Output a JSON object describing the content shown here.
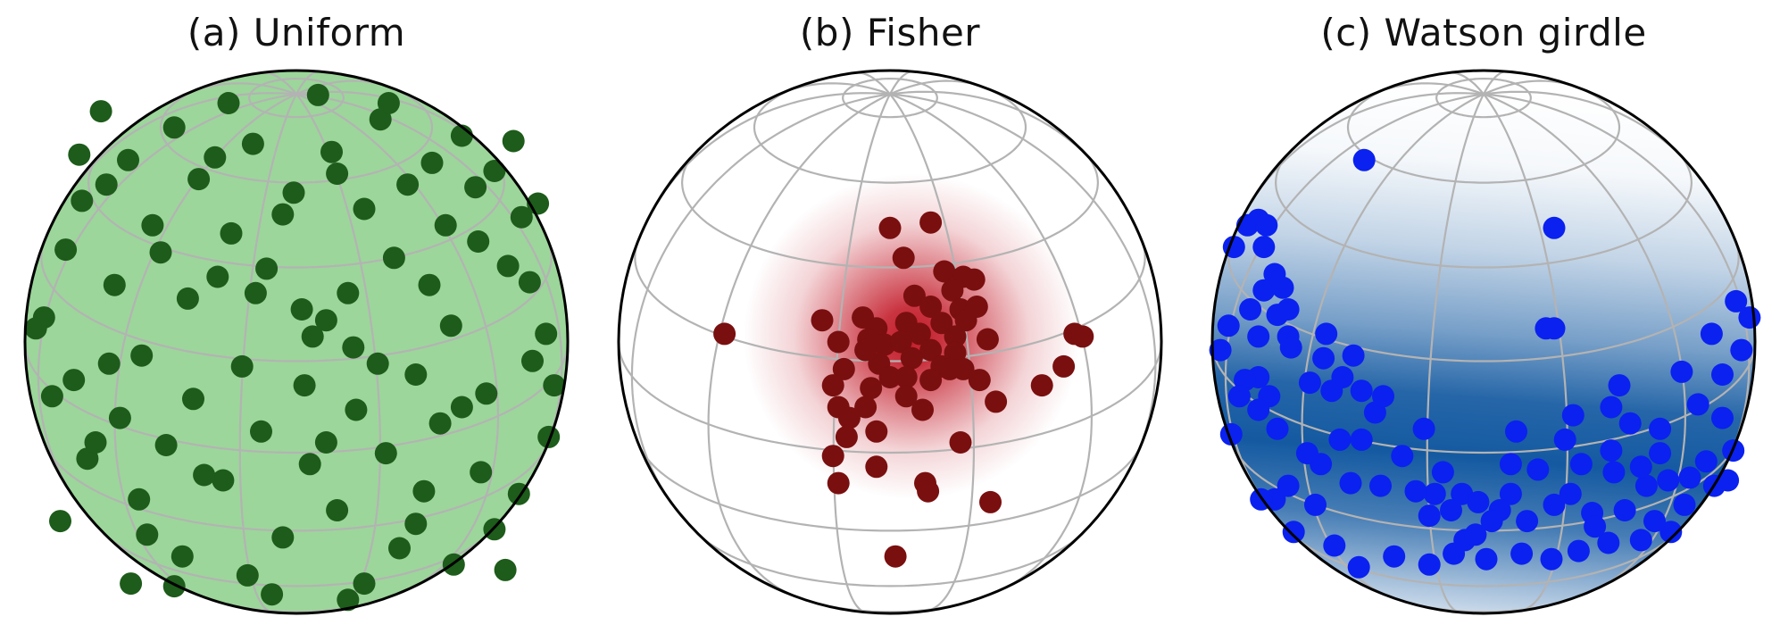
{
  "figure": {
    "colors": {
      "outline": "#000000",
      "gridline": "#b3b3b3"
    }
  },
  "chart_data": [
    {
      "type": "scatter",
      "projection": "orthographic sphere",
      "title": "(a) Uniform",
      "distribution": "uniform",
      "density_fill": "none",
      "sphere_fill": "#9cd69a",
      "point_color": "#1d5c1a",
      "point_count": 96,
      "points": [
        [
          0.06,
          0.02
        ],
        [
          0.57,
          0.06
        ],
        [
          0.11,
          0.08
        ],
        [
          -0.4,
          0.16
        ],
        [
          0.19,
          0.18
        ],
        [
          -0.67,
          0.21
        ],
        [
          0.49,
          0.21
        ],
        [
          -0.11,
          0.27
        ],
        [
          0.36,
          0.31
        ],
        [
          -0.85,
          0.34
        ],
        [
          0.67,
          0.37
        ],
        [
          -0.24,
          0.4
        ],
        [
          -0.53,
          0.43
        ],
        [
          0.83,
          0.46
        ],
        [
          0.25,
          0.49
        ],
        [
          -0.79,
          0.52
        ],
        [
          -0.01,
          0.55
        ],
        [
          0.41,
          0.58
        ],
        [
          -0.36,
          0.6
        ],
        [
          0.73,
          0.63
        ],
        [
          -0.62,
          0.67
        ],
        [
          0.13,
          0.7
        ],
        [
          -0.16,
          0.73
        ],
        [
          0.61,
          0.76
        ],
        [
          -0.45,
          0.79
        ],
        [
          0.31,
          0.82
        ],
        [
          -0.72,
          0.85
        ],
        [
          0.92,
          0.03
        ],
        [
          -0.93,
          0.09
        ],
        [
          0.02,
          0.12
        ],
        [
          -0.29,
          0.24
        ],
        [
          0.78,
          0.28
        ],
        [
          -0.5,
          0.33
        ],
        [
          0.55,
          0.43
        ],
        [
          -0.05,
          0.47
        ],
        [
          -0.7,
          0.58
        ],
        [
          0.89,
          0.51
        ],
        [
          0.15,
          0.62
        ],
        [
          -0.3,
          0.68
        ],
        [
          0.8,
          0.74
        ],
        [
          0.21,
          -0.02
        ],
        [
          -0.57,
          -0.05
        ],
        [
          0.87,
          -0.07
        ],
        [
          -0.2,
          -0.09
        ],
        [
          0.44,
          -0.12
        ],
        [
          -0.82,
          -0.14
        ],
        [
          0.03,
          -0.16
        ],
        [
          0.7,
          -0.19
        ],
        [
          -0.38,
          -0.21
        ],
        [
          0.22,
          -0.25
        ],
        [
          -0.65,
          -0.28
        ],
        [
          0.53,
          -0.3
        ],
        [
          -0.13,
          -0.33
        ],
        [
          0.93,
          -0.35
        ],
        [
          -0.48,
          -0.38
        ],
        [
          0.33,
          -0.41
        ],
        [
          -0.77,
          -0.43
        ],
        [
          0.05,
          -0.45
        ],
        [
          0.68,
          -0.48
        ],
        [
          -0.27,
          -0.51
        ],
        [
          0.47,
          -0.55
        ],
        [
          -0.58,
          -0.58
        ],
        [
          0.15,
          -0.62
        ],
        [
          -0.87,
          -0.66
        ],
        [
          0.73,
          -0.69
        ],
        [
          -0.05,
          -0.72
        ],
        [
          0.38,
          -0.76
        ],
        [
          -0.42,
          -0.79
        ],
        [
          0.58,
          -0.82
        ],
        [
          -0.18,
          -0.86
        ],
        [
          0.25,
          -0.89
        ],
        [
          -0.69,
          -0.08
        ],
        [
          0.61,
          -0.24
        ],
        [
          -0.34,
          -0.49
        ],
        [
          0.82,
          -0.56
        ],
        [
          -0.9,
          -0.2
        ],
        [
          0.11,
          -0.37
        ],
        [
          -0.55,
          -0.71
        ],
        [
          0.44,
          -0.67
        ],
        [
          -0.09,
          -0.93
        ],
        [
          0.3,
          -0.08
        ],
        [
          -0.74,
          -0.37
        ],
        [
          0.95,
          -0.16
        ],
        [
          -0.45,
          -0.9
        ],
        [
          0.08,
          0.91
        ],
        [
          0.34,
          0.88
        ],
        [
          -0.25,
          0.88
        ],
        [
          0.66,
          0.57
        ],
        [
          -0.96,
          0.05
        ],
        [
          0.5,
          0.66
        ],
        [
          0.86,
          0.22
        ],
        [
          -0.15,
          0.18
        ],
        [
          -0.61,
          -0.89
        ],
        [
          0.19,
          -0.95
        ],
        [
          0.77,
          -0.84
        ],
        [
          -0.8,
          0.69
        ]
      ]
    },
    {
      "type": "scatter",
      "projection": "orthographic sphere",
      "title": "(b) Fisher",
      "distribution": "Fisher",
      "density_fill": "concentrated",
      "sphere_fill": "#ffffff",
      "density_color": "#c0101f",
      "point_color": "#7a0f0f",
      "point_count": 60,
      "mean_direction": [
        0.08,
        0.02
      ],
      "points": [
        [
          0.0,
          0.42
        ],
        [
          0.15,
          0.44
        ],
        [
          0.05,
          0.31
        ],
        [
          0.2,
          0.26
        ],
        [
          0.27,
          0.24
        ],
        [
          0.31,
          0.23
        ],
        [
          0.23,
          0.19
        ],
        [
          0.09,
          0.17
        ],
        [
          0.15,
          0.13
        ],
        [
          0.26,
          0.12
        ],
        [
          0.32,
          0.13
        ],
        [
          0.06,
          0.07
        ],
        [
          0.19,
          0.07
        ],
        [
          0.28,
          0.08
        ],
        [
          -0.25,
          0.08
        ],
        [
          -0.1,
          0.09
        ],
        [
          -0.05,
          0.05
        ],
        [
          0.11,
          0.03
        ],
        [
          0.24,
          0.02
        ],
        [
          0.36,
          0.01
        ],
        [
          -0.19,
          0.0
        ],
        [
          -0.08,
          0.01
        ],
        [
          -0.02,
          -0.01
        ],
        [
          0.04,
          0.0
        ],
        [
          -0.09,
          -0.03
        ],
        [
          0.15,
          -0.03
        ],
        [
          0.08,
          -0.06
        ],
        [
          0.24,
          -0.04
        ],
        [
          -0.04,
          -0.08
        ],
        [
          -0.17,
          -0.1
        ],
        [
          0.19,
          -0.09
        ],
        [
          0.27,
          -0.1
        ],
        [
          -0.21,
          -0.16
        ],
        [
          0.0,
          -0.13
        ],
        [
          0.06,
          -0.13
        ],
        [
          0.15,
          -0.14
        ],
        [
          -0.07,
          -0.17
        ],
        [
          0.22,
          -0.1
        ],
        [
          0.33,
          -0.14
        ],
        [
          0.06,
          -0.2
        ],
        [
          -0.19,
          -0.24
        ],
        [
          -0.09,
          -0.24
        ],
        [
          0.12,
          -0.25
        ],
        [
          -0.15,
          -0.28
        ],
        [
          0.39,
          -0.22
        ],
        [
          -0.05,
          -0.33
        ],
        [
          0.26,
          -0.37
        ],
        [
          -0.21,
          -0.42
        ],
        [
          0.56,
          -0.16
        ],
        [
          -0.05,
          -0.46
        ],
        [
          -0.19,
          -0.52
        ],
        [
          0.13,
          -0.52
        ],
        [
          0.37,
          -0.59
        ],
        [
          0.02,
          -0.79
        ],
        [
          0.14,
          -0.55
        ],
        [
          -0.61,
          0.03
        ],
        [
          0.68,
          0.03
        ],
        [
          0.64,
          -0.09
        ],
        [
          0.71,
          0.02
        ],
        [
          -0.16,
          -0.35
        ]
      ]
    },
    {
      "type": "scatter",
      "projection": "orthographic sphere",
      "title": "(c) Watson girdle",
      "distribution": "Watson girdle",
      "density_fill": "band",
      "sphere_fill": "#ffffff",
      "density_color": "#08519c",
      "point_color": "#0a21f0",
      "point_count": 110,
      "points": [
        [
          -0.44,
          0.67
        ],
        [
          0.26,
          0.42
        ],
        [
          0.23,
          0.05
        ],
        [
          0.26,
          0.05
        ],
        [
          0.84,
          0.03
        ],
        [
          -0.87,
          0.43
        ],
        [
          -0.83,
          0.45
        ],
        [
          -0.8,
          0.43
        ],
        [
          -0.81,
          0.35
        ],
        [
          -0.77,
          0.25
        ],
        [
          -0.81,
          0.19
        ],
        [
          -0.74,
          0.2
        ],
        [
          -0.86,
          0.12
        ],
        [
          -0.76,
          0.1
        ],
        [
          -0.72,
          0.12
        ],
        [
          -0.83,
          0.02
        ],
        [
          -0.72,
          0.02
        ],
        [
          -0.71,
          -0.02
        ],
        [
          -0.59,
          -0.06
        ],
        [
          -0.83,
          -0.13
        ],
        [
          -0.64,
          -0.15
        ],
        [
          -0.88,
          -0.14
        ],
        [
          -0.79,
          -0.2
        ],
        [
          -0.52,
          -0.13
        ],
        [
          -0.56,
          -0.18
        ],
        [
          -0.83,
          -0.25
        ],
        [
          -0.4,
          -0.26
        ],
        [
          -0.53,
          -0.36
        ],
        [
          -0.45,
          -0.36
        ],
        [
          -0.22,
          -0.32
        ],
        [
          -0.6,
          -0.45
        ],
        [
          -0.49,
          -0.52
        ],
        [
          -0.18,
          -0.56
        ],
        [
          -0.08,
          -0.56
        ],
        [
          -0.02,
          -0.59
        ],
        [
          0.1,
          -0.56
        ],
        [
          -0.12,
          -0.62
        ],
        [
          0.06,
          -0.62
        ],
        [
          0.26,
          -0.6
        ],
        [
          0.32,
          -0.56
        ],
        [
          0.48,
          -0.48
        ],
        [
          0.6,
          -0.53
        ],
        [
          0.68,
          -0.51
        ],
        [
          0.65,
          -0.32
        ],
        [
          0.65,
          -0.41
        ],
        [
          0.54,
          -0.3
        ],
        [
          0.47,
          -0.4
        ],
        [
          0.33,
          -0.27
        ],
        [
          0.12,
          -0.33
        ],
        [
          0.76,
          -0.5
        ],
        [
          0.88,
          -0.28
        ],
        [
          0.92,
          -0.4
        ],
        [
          0.85,
          -0.53
        ],
        [
          0.74,
          -0.6
        ],
        [
          0.69,
          -0.7
        ],
        [
          0.58,
          -0.73
        ],
        [
          0.46,
          -0.74
        ],
        [
          0.35,
          -0.77
        ],
        [
          0.25,
          -0.8
        ],
        [
          0.14,
          -0.78
        ],
        [
          -0.07,
          -0.73
        ],
        [
          -0.11,
          -0.78
        ],
        [
          -0.2,
          -0.82
        ],
        [
          -0.33,
          -0.79
        ],
        [
          -0.46,
          -0.83
        ],
        [
          -0.62,
          -0.6
        ],
        [
          -0.77,
          -0.58
        ],
        [
          -0.82,
          -0.58
        ],
        [
          -0.92,
          0.35
        ],
        [
          -0.94,
          0.06
        ],
        [
          -0.97,
          -0.03
        ],
        [
          -0.9,
          -0.2
        ],
        [
          0.95,
          -0.03
        ],
        [
          0.93,
          0.15
        ],
        [
          0.73,
          -0.11
        ],
        [
          0.5,
          -0.16
        ],
        [
          0.58,
          -0.46
        ],
        [
          0.52,
          -0.62
        ],
        [
          0.4,
          -0.63
        ],
        [
          0.16,
          -0.66
        ],
        [
          0.03,
          -0.66
        ],
        [
          -0.03,
          -0.71
        ],
        [
          -0.2,
          -0.64
        ],
        [
          -0.25,
          -0.55
        ],
        [
          -0.38,
          -0.53
        ],
        [
          -0.65,
          -0.41
        ],
        [
          -0.72,
          -0.53
        ],
        [
          -0.93,
          -0.34
        ],
        [
          -0.58,
          0.03
        ],
        [
          -0.48,
          -0.05
        ],
        [
          -0.45,
          -0.18
        ],
        [
          -0.76,
          -0.32
        ],
        [
          0.1,
          -0.45
        ],
        [
          0.36,
          -0.45
        ],
        [
          0.47,
          -0.24
        ],
        [
          0.79,
          -0.23
        ],
        [
          0.88,
          -0.12
        ],
        [
          0.98,
          0.09
        ],
        [
          0.82,
          -0.44
        ],
        [
          0.3,
          -0.36
        ],
        [
          -0.3,
          -0.42
        ],
        [
          0.01,
          -0.8
        ],
        [
          0.41,
          -0.68
        ],
        [
          0.63,
          -0.66
        ],
        [
          -0.55,
          -0.75
        ],
        [
          -0.7,
          -0.7
        ],
        [
          -0.15,
          -0.48
        ],
        [
          0.2,
          -0.47
        ],
        [
          0.9,
          -0.51
        ],
        [
          -0.37,
          -0.2
        ]
      ]
    }
  ]
}
